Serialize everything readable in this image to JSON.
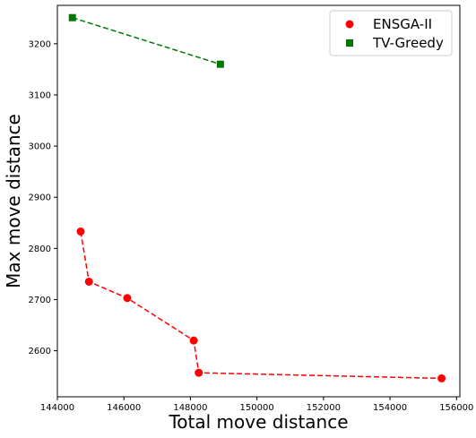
{
  "chart_data": {
    "type": "scatter",
    "title": "",
    "xlabel": "Total move distance",
    "ylabel": "Max move distance",
    "xlim": [
      144000,
      156100
    ],
    "ylim": [
      2510,
      3275
    ],
    "xticks": [
      144000,
      146000,
      148000,
      150000,
      152000,
      154000,
      156000
    ],
    "yticks": [
      2600,
      2700,
      2800,
      2900,
      3000,
      3100,
      3200
    ],
    "grid": false,
    "legend_position": "top-right",
    "series": [
      {
        "name": "ENSGA-II",
        "marker": "circle",
        "color": "#ff0000",
        "line_style": "dashed",
        "points": [
          {
            "x": 144700,
            "y": 2833
          },
          {
            "x": 144950,
            "y": 2735
          },
          {
            "x": 146100,
            "y": 2703
          },
          {
            "x": 148100,
            "y": 2620
          },
          {
            "x": 148250,
            "y": 2557
          },
          {
            "x": 155550,
            "y": 2546
          }
        ]
      },
      {
        "name": "TV-Greedy",
        "marker": "square",
        "color": "#007700",
        "line_style": "dashed",
        "points": [
          {
            "x": 144450,
            "y": 3251
          },
          {
            "x": 148900,
            "y": 3160
          }
        ]
      }
    ]
  }
}
